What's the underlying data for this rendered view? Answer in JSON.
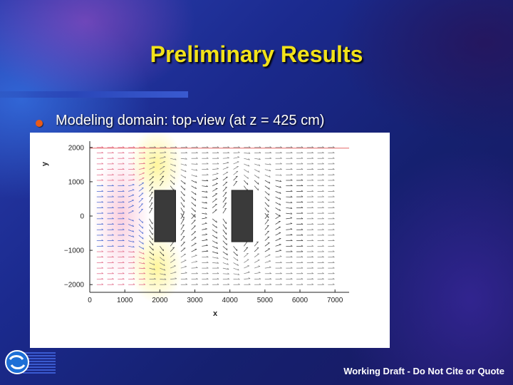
{
  "slide": {
    "title": "Preliminary Results",
    "bullet": "Modeling domain: top-view (at z = 425 cm)",
    "footer": "Working Draft  -  Do Not Cite or Quote",
    "logo_icon": "organization-logo-icon"
  },
  "colors": {
    "title": "#f2e21a",
    "bullet": "#e85a18",
    "background": "#1b2a8e",
    "building": "#3a3a3a"
  },
  "chart_data": {
    "type": "vector-field",
    "xlabel": "x",
    "ylabel": "y",
    "xlim": [
      0,
      7200
    ],
    "ylim": [
      -2100,
      2100
    ],
    "x_ticks": [
      0,
      1000,
      2000,
      3000,
      4000,
      5000,
      6000,
      7000
    ],
    "x_tick_labels": [
      "0",
      "1000",
      "2000",
      "3000",
      "4000",
      "5000",
      "6000",
      "7000"
    ],
    "y_ticks": [
      2000,
      1000,
      0,
      -1000,
      -2000
    ],
    "y_tick_labels": [
      "2000",
      "1000",
      "0",
      "−1000",
      "−2000"
    ],
    "buildings": [
      {
        "x0": 1850,
        "x1": 2450,
        "y0": -750,
        "y1": 750
      },
      {
        "x0": 4050,
        "x1": 4650,
        "y0": -750,
        "y1": 750
      }
    ]
  }
}
